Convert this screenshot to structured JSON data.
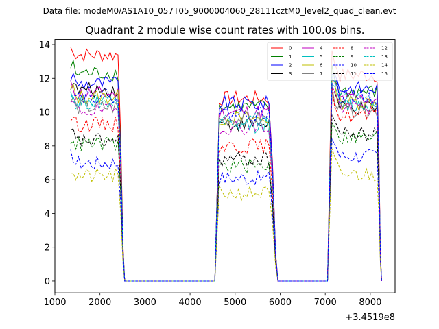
{
  "chart_data": {
    "type": "line",
    "suptitle": "Data file: modeM0/AS1A10_057T05_9000004060_28111cztM0_level2_quad_clean.evt",
    "title": "Quadrant 2 module wise count rates with 100.0s bins.",
    "xlabel": "",
    "ylabel": "",
    "x_offset_label": "+3.4519e8",
    "xlim": [
      1000,
      8550
    ],
    "ylim": [
      -0.7,
      14.3
    ],
    "x_ticks": [
      1000,
      2000,
      3000,
      4000,
      5000,
      6000,
      7000,
      8000
    ],
    "y_ticks": [
      0,
      2,
      4,
      6,
      8,
      10,
      12,
      14
    ],
    "x_tick_labels": [
      "1000",
      "2000",
      "3000",
      "4000",
      "5000",
      "6000",
      "7000",
      "8000"
    ],
    "y_tick_labels": [
      "0",
      "2",
      "4",
      "6",
      "8",
      "10",
      "12",
      "14"
    ],
    "legend_position": "top-right",
    "segments": [
      {
        "start": 1350,
        "end": 2400,
        "drop_end": 2550
      },
      {
        "start": 4650,
        "end": 5750,
        "drop_end": 5950
      },
      {
        "start": 7150,
        "end": 8150,
        "drop_end": 8250
      }
    ],
    "series": [
      {
        "name": "0",
        "color": "#ff0000",
        "dashed": false,
        "levels": [
          13.4,
          10.8,
          12.2
        ]
      },
      {
        "name": "1",
        "color": "#008000",
        "dashed": false,
        "levels": [
          12.3,
          10.3,
          11.2
        ]
      },
      {
        "name": "2",
        "color": "#0000ff",
        "dashed": false,
        "levels": [
          11.7,
          10.5,
          11.4
        ]
      },
      {
        "name": "3",
        "color": "#000000",
        "dashed": false,
        "levels": [
          11.3,
          9.3,
          10.2
        ]
      },
      {
        "name": "4",
        "color": "#bf00bf",
        "dashed": false,
        "levels": [
          11.1,
          10.0,
          10.8
        ]
      },
      {
        "name": "5",
        "color": "#00bfbf",
        "dashed": false,
        "levels": [
          10.6,
          9.2,
          10.4
        ]
      },
      {
        "name": "6",
        "color": "#bfbf00",
        "dashed": false,
        "levels": [
          10.9,
          9.6,
          10.6
        ]
      },
      {
        "name": "7",
        "color": "#808080",
        "dashed": false,
        "levels": [
          10.3,
          9.6,
          10.1
        ]
      },
      {
        "name": "8",
        "color": "#ff0000",
        "dashed": true,
        "levels": [
          9.3,
          8.0,
          9.8
        ]
      },
      {
        "name": "9",
        "color": "#008000",
        "dashed": true,
        "levels": [
          8.1,
          6.8,
          8.5
        ]
      },
      {
        "name": "10",
        "color": "#0000ff",
        "dashed": true,
        "levels": [
          7.0,
          6.1,
          7.4
        ]
      },
      {
        "name": "11",
        "color": "#000000",
        "dashed": true,
        "levels": [
          8.3,
          7.2,
          8.7
        ]
      },
      {
        "name": "12",
        "color": "#bf00bf",
        "dashed": true,
        "levels": [
          10.1,
          9.1,
          10.3
        ]
      },
      {
        "name": "13",
        "color": "#00bfbf",
        "dashed": true,
        "levels": [
          10.6,
          9.6,
          10.8
        ]
      },
      {
        "name": "14",
        "color": "#bfbf00",
        "dashed": true,
        "levels": [
          6.2,
          5.2,
          6.3
        ]
      },
      {
        "name": "15",
        "color": "#0000ff",
        "dashed": true,
        "levels": [
          11.0,
          9.9,
          10.9
        ]
      }
    ]
  }
}
